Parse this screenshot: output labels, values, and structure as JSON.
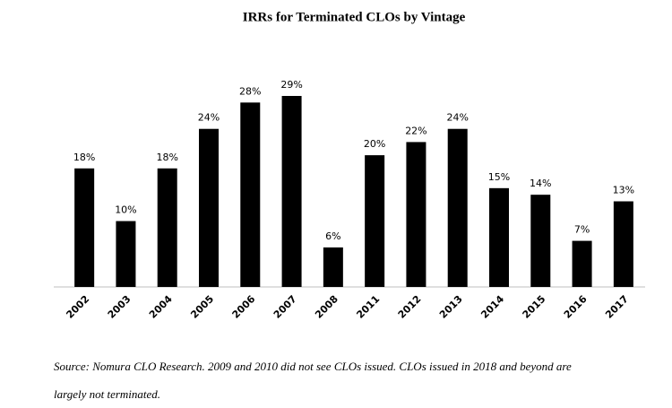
{
  "chart_data": {
    "type": "bar",
    "title": "IRRs for Terminated CLOs by Vintage",
    "categories": [
      "2002",
      "2003",
      "2004",
      "2005",
      "2006",
      "2007",
      "2008",
      "2011",
      "2012",
      "2013",
      "2014",
      "2015",
      "2016",
      "2017"
    ],
    "values": [
      18,
      10,
      18,
      24,
      28,
      29,
      6,
      20,
      22,
      24,
      15,
      14,
      7,
      13
    ],
    "value_labels": [
      "18%",
      "10%",
      "18%",
      "24%",
      "28%",
      "29%",
      "6%",
      "20%",
      "22%",
      "24%",
      "15%",
      "14%",
      "7%",
      "13%"
    ],
    "color": "#000000",
    "source": [
      "Source: Nomura CLO Research. 2009 and 2010 did not see CLOs issued. CLOs issued in 2018 and beyond are",
      "largely not terminated."
    ]
  }
}
